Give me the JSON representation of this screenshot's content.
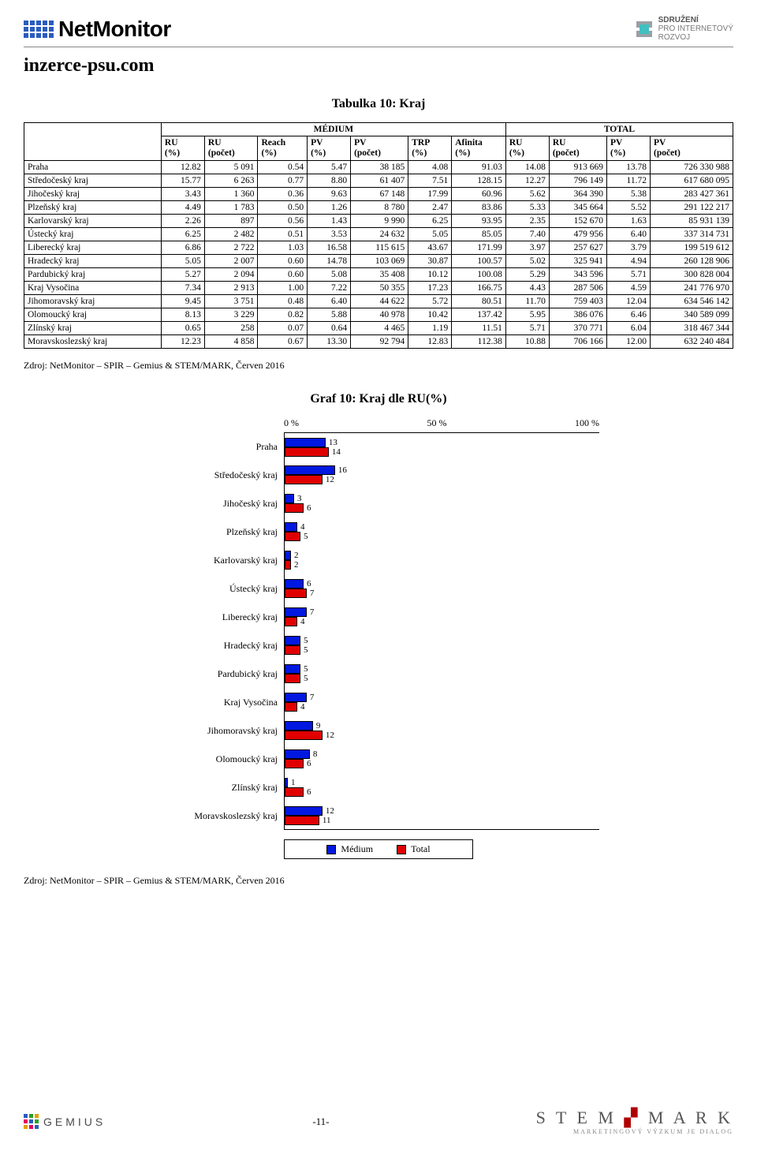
{
  "header": {
    "brand": "NetMonitor",
    "spir_line1": "SDRUŽENÍ",
    "spir_line2": "PRO INTERNETOVÝ",
    "spir_line3": "ROZVOJ"
  },
  "site_title": "inzerce-psu.com",
  "table": {
    "title": "Tabulka 10: Kraj",
    "group_medium": "MÉDIUM",
    "group_total": "TOTAL",
    "columns_medium": [
      {
        "l1": "RU",
        "l2": "(%)"
      },
      {
        "l1": "RU",
        "l2": "(počet)"
      },
      {
        "l1": "Reach",
        "l2": "(%)"
      },
      {
        "l1": "PV",
        "l2": "(%)"
      },
      {
        "l1": "PV",
        "l2": "(počet)"
      },
      {
        "l1": "TRP",
        "l2": "(%)"
      },
      {
        "l1": "Afinita",
        "l2": "(%)"
      }
    ],
    "columns_total": [
      {
        "l1": "RU",
        "l2": "(%)"
      },
      {
        "l1": "RU",
        "l2": "(počet)"
      },
      {
        "l1": "PV",
        "l2": "(%)"
      },
      {
        "l1": "PV",
        "l2": "(počet)"
      }
    ],
    "rows": [
      {
        "label": "Praha",
        "m": [
          "12.82",
          "5 091",
          "0.54",
          "5.47",
          "38 185",
          "4.08",
          "91.03"
        ],
        "t": [
          "14.08",
          "913 669",
          "13.78",
          "726 330 988"
        ]
      },
      {
        "label": "Středočeský kraj",
        "m": [
          "15.77",
          "6 263",
          "0.77",
          "8.80",
          "61 407",
          "7.51",
          "128.15"
        ],
        "t": [
          "12.27",
          "796 149",
          "11.72",
          "617 680 095"
        ]
      },
      {
        "label": "Jihočeský kraj",
        "m": [
          "3.43",
          "1 360",
          "0.36",
          "9.63",
          "67 148",
          "17.99",
          "60.96"
        ],
        "t": [
          "5.62",
          "364 390",
          "5.38",
          "283 427 361"
        ]
      },
      {
        "label": "Plzeňský kraj",
        "m": [
          "4.49",
          "1 783",
          "0.50",
          "1.26",
          "8 780",
          "2.47",
          "83.86"
        ],
        "t": [
          "5.33",
          "345 664",
          "5.52",
          "291 122 217"
        ]
      },
      {
        "label": "Karlovarský kraj",
        "m": [
          "2.26",
          "897",
          "0.56",
          "1.43",
          "9 990",
          "6.25",
          "93.95"
        ],
        "t": [
          "2.35",
          "152 670",
          "1.63",
          "85 931 139"
        ]
      },
      {
        "label": "Ústecký kraj",
        "m": [
          "6.25",
          "2 482",
          "0.51",
          "3.53",
          "24 632",
          "5.05",
          "85.05"
        ],
        "t": [
          "7.40",
          "479 956",
          "6.40",
          "337 314 731"
        ]
      },
      {
        "label": "Liberecký kraj",
        "m": [
          "6.86",
          "2 722",
          "1.03",
          "16.58",
          "115 615",
          "43.67",
          "171.99"
        ],
        "t": [
          "3.97",
          "257 627",
          "3.79",
          "199 519 612"
        ]
      },
      {
        "label": "Hradecký kraj",
        "m": [
          "5.05",
          "2 007",
          "0.60",
          "14.78",
          "103 069",
          "30.87",
          "100.57"
        ],
        "t": [
          "5.02",
          "325 941",
          "4.94",
          "260 128 906"
        ]
      },
      {
        "label": "Pardubický kraj",
        "m": [
          "5.27",
          "2 094",
          "0.60",
          "5.08",
          "35 408",
          "10.12",
          "100.08"
        ],
        "t": [
          "5.29",
          "343 596",
          "5.71",
          "300 828 004"
        ]
      },
      {
        "label": "Kraj Vysočina",
        "m": [
          "7.34",
          "2 913",
          "1.00",
          "7.22",
          "50 355",
          "17.23",
          "166.75"
        ],
        "t": [
          "4.43",
          "287 506",
          "4.59",
          "241 776 970"
        ]
      },
      {
        "label": "Jihomoravský kraj",
        "m": [
          "9.45",
          "3 751",
          "0.48",
          "6.40",
          "44 622",
          "5.72",
          "80.51"
        ],
        "t": [
          "11.70",
          "759 403",
          "12.04",
          "634 546 142"
        ]
      },
      {
        "label": "Olomoucký kraj",
        "m": [
          "8.13",
          "3 229",
          "0.82",
          "5.88",
          "40 978",
          "10.42",
          "137.42"
        ],
        "t": [
          "5.95",
          "386 076",
          "6.46",
          "340 589 099"
        ]
      },
      {
        "label": "Zlínský kraj",
        "m": [
          "0.65",
          "258",
          "0.07",
          "0.64",
          "4 465",
          "1.19",
          "11.51"
        ],
        "t": [
          "5.71",
          "370 771",
          "6.04",
          "318 467 344"
        ]
      },
      {
        "label": "Moravskoslezský kraj",
        "m": [
          "12.23",
          "4 858",
          "0.67",
          "13.30",
          "92 794",
          "12.83",
          "112.38"
        ],
        "t": [
          "10.88",
          "706 166",
          "12.00",
          "632 240 484"
        ]
      }
    ]
  },
  "source_line": "Zdroj: NetMonitor – SPIR – Gemius & STEM/MARK, Červen 2016",
  "chart": {
    "title": "Graf 10: Kraj dle RU(%)",
    "axis": {
      "min": 0,
      "max": 100,
      "ticks": [
        "0 %",
        "50 %",
        "100 %"
      ]
    },
    "colors": {
      "medium": "#0018e0",
      "total": "#e00000",
      "border": "#000000"
    },
    "legend": {
      "medium": "Médium",
      "total": "Total"
    },
    "bars": [
      {
        "label": "Praha",
        "medium": 13,
        "total": 14
      },
      {
        "label": "Středočeský kraj",
        "medium": 16,
        "total": 12
      },
      {
        "label": "Jihočeský kraj",
        "medium": 3,
        "total": 6
      },
      {
        "label": "Plzeňský kraj",
        "medium": 4,
        "total": 5
      },
      {
        "label": "Karlovarský kraj",
        "medium": 2,
        "total": 2
      },
      {
        "label": "Ústecký kraj",
        "medium": 6,
        "total": 7
      },
      {
        "label": "Liberecký kraj",
        "medium": 7,
        "total": 4
      },
      {
        "label": "Hradecký kraj",
        "medium": 5,
        "total": 5
      },
      {
        "label": "Pardubický kraj",
        "medium": 5,
        "total": 5
      },
      {
        "label": "Kraj Vysočina",
        "medium": 7,
        "total": 4
      },
      {
        "label": "Jihomoravský kraj",
        "medium": 9,
        "total": 12
      },
      {
        "label": "Olomoucký kraj",
        "medium": 8,
        "total": 6
      },
      {
        "label": "Zlínský kraj",
        "medium": 1,
        "total": 6
      },
      {
        "label": "Moravskoslezský kraj",
        "medium": 12,
        "total": 11
      }
    ]
  },
  "footer": {
    "gemius": "GEMIUS",
    "page": "-11-",
    "stemmark": "STEM MARK",
    "stemmark_sub": "MARKETINGOVÝ VÝZKUM JE DIALOG"
  }
}
